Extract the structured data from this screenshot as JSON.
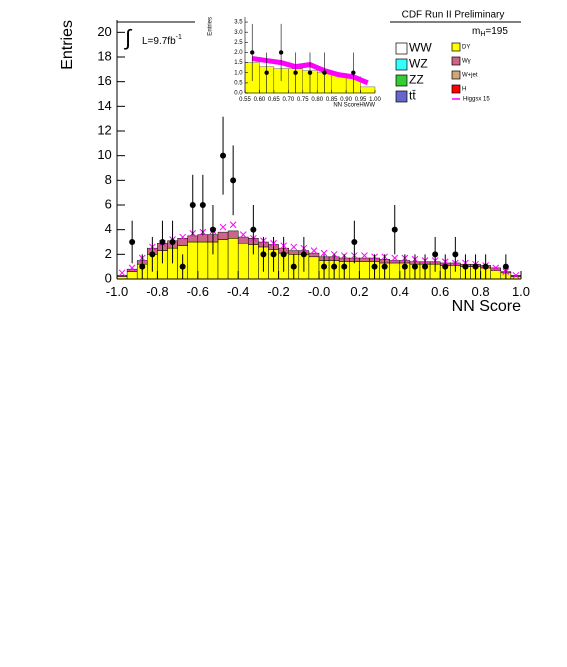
{
  "chart_data": [
    {
      "type": "histogram",
      "title": "CDF Run II Preliminary",
      "mass_label": {
        "prefix": "m",
        "sub": "H",
        "suffix": "=195"
      },
      "lumi_label": {
        "integral": "∫",
        "text": "L=9.7fb",
        "sup": "-1"
      },
      "xlabel": "NN Score",
      "ylabel": "Entries",
      "bins": [
        -1.0,
        -0.95,
        -0.9,
        -0.85,
        -0.8,
        -0.75,
        -0.7,
        -0.65,
        -0.6,
        -0.55,
        -0.5,
        -0.45,
        -0.4,
        -0.35,
        -0.3,
        -0.25,
        -0.2,
        -0.15,
        -0.1,
        -0.05,
        0.0,
        0.05,
        0.1,
        0.15,
        0.2,
        0.25,
        0.3,
        0.35,
        0.4,
        0.45,
        0.5,
        0.55,
        0.6,
        0.65,
        0.7,
        0.75,
        0.8,
        0.85,
        0.9,
        0.95,
        1.0
      ],
      "xlim": [
        -1.0,
        1.0
      ],
      "ylim": [
        0,
        21
      ],
      "xticks": [
        {
          "value": -1.0,
          "label": "-1.0"
        },
        {
          "value": -0.8,
          "label": "-0.8"
        },
        {
          "value": -0.6,
          "label": "-0.6"
        },
        {
          "value": -0.4,
          "label": "-0.4"
        },
        {
          "value": -0.2,
          "label": "-0.2"
        },
        {
          "value": 0,
          "label": "-0.0"
        },
        {
          "value": 0.2,
          "label": "0.2"
        },
        {
          "value": 0.4,
          "label": "0.4"
        },
        {
          "value": 0.6,
          "label": "0.6"
        },
        {
          "value": 0.8,
          "label": "0.8"
        },
        {
          "value": 1.0,
          "label": "1.0"
        }
      ],
      "yticks": [
        0,
        2,
        4,
        6,
        8,
        10,
        12,
        14,
        16,
        18,
        20
      ],
      "backgrounds": [
        {
          "name": "WW",
          "color": "#ffffff"
        },
        {
          "name": "WZ",
          "color": "#33ffff"
        },
        {
          "name": "ZZ",
          "color": "#33cc33"
        },
        {
          "name": "tt̄",
          "color": "#6666cc"
        },
        {
          "name": "DY",
          "color": "#ffff00",
          "values": [
            0.2,
            0.6,
            1.2,
            2.0,
            2.3,
            2.5,
            2.7,
            3.0,
            3.0,
            3.0,
            3.2,
            3.3,
            2.9,
            2.8,
            2.6,
            2.4,
            2.1,
            2.0,
            2.0,
            1.8,
            1.5,
            1.5,
            1.4,
            1.4,
            1.4,
            1.4,
            1.3,
            1.3,
            1.3,
            1.2,
            1.2,
            1.2,
            1.1,
            1.1,
            1.0,
            1.0,
            0.9,
            0.7,
            0.5,
            0.2
          ]
        },
        {
          "name": "Wγ",
          "color": "#cc6688",
          "values": [
            0.1,
            0.2,
            0.3,
            0.5,
            0.6,
            0.6,
            0.6,
            0.5,
            0.6,
            0.6,
            0.6,
            0.6,
            0.5,
            0.5,
            0.4,
            0.4,
            0.4,
            0.3,
            0.3,
            0.3,
            0.3,
            0.3,
            0.3,
            0.3,
            0.3,
            0.3,
            0.3,
            0.2,
            0.2,
            0.2,
            0.2,
            0.2,
            0.2,
            0.2,
            0.2,
            0.2,
            0.2,
            0.2,
            0.1,
            0.1
          ]
        },
        {
          "name": "W+jet",
          "color": "#d2a679"
        },
        {
          "name": "H",
          "color": "#ff0000"
        }
      ],
      "signal": {
        "name": "Higgsx 15",
        "color": "#ff00ff",
        "values": [
          0.5,
          0.9,
          1.7,
          2.6,
          2.9,
          3.2,
          3.4,
          3.7,
          3.8,
          3.9,
          4.2,
          4.4,
          3.6,
          3.3,
          3.1,
          2.9,
          2.7,
          2.6,
          2.5,
          2.3,
          2.1,
          2.0,
          1.9,
          1.9,
          1.9,
          1.8,
          1.8,
          1.7,
          1.7,
          1.6,
          1.5,
          1.5,
          1.4,
          1.3,
          1.3,
          1.2,
          1.1,
          0.9,
          0.6,
          0.3
        ]
      },
      "data": {
        "x": [
          -0.925,
          -0.875,
          -0.825,
          -0.775,
          -0.725,
          -0.675,
          -0.625,
          -0.575,
          -0.525,
          -0.475,
          -0.425,
          -0.325,
          -0.275,
          -0.225,
          -0.175,
          -0.125,
          -0.075,
          0.025,
          0.075,
          0.125,
          0.175,
          0.275,
          0.325,
          0.375,
          0.425,
          0.475,
          0.525,
          0.575,
          0.625,
          0.675,
          0.725,
          0.775,
          0.825,
          0.925
        ],
        "values": [
          3,
          1,
          2,
          3,
          3,
          1,
          6,
          6,
          4,
          10,
          8,
          4,
          2,
          2,
          2,
          1,
          2,
          1,
          1,
          1,
          3,
          1,
          1,
          4,
          1,
          1,
          1,
          2,
          1,
          2,
          1,
          1,
          1,
          1
        ],
        "errors": [
          1.73,
          1,
          1.41,
          1.73,
          1.73,
          1,
          2.45,
          2.45,
          2,
          3.16,
          2.83,
          2,
          1.41,
          1.41,
          1.41,
          1,
          1.41,
          1,
          1,
          1,
          1.73,
          1,
          1,
          2,
          1,
          1,
          1,
          1.41,
          1,
          1.41,
          1,
          1,
          1,
          1
        ]
      }
    },
    {
      "type": "histogram",
      "xlabel": "NN ScoreHWW",
      "ylabel": "Entries",
      "bins": [
        0.55,
        0.6,
        0.65,
        0.7,
        0.75,
        0.8,
        0.85,
        0.9,
        0.95,
        1.0
      ],
      "xlim": [
        0.55,
        1.0
      ],
      "ylim": [
        0,
        3.75
      ],
      "xticks": [
        0.55,
        {
          "value": 0.6,
          "label": "0.60"
        },
        0.65,
        {
          "value": 0.7,
          "label": "0.70"
        },
        0.75,
        {
          "value": 0.8,
          "label": "0.80"
        },
        0.85,
        {
          "value": 0.9,
          "label": "0.90"
        },
        0.95,
        {
          "value": 1.0,
          "label": "1.00"
        }
      ],
      "yticks": [
        {
          "value": 0,
          "label": "0.0"
        },
        0.5,
        {
          "value": 1,
          "label": "1.0"
        },
        1.5,
        {
          "value": 2,
          "label": "2.0"
        },
        2.5,
        {
          "value": 3,
          "label": "3.0"
        },
        3.5
      ],
      "backgrounds": [
        {
          "color": "#ffff00",
          "values": [
            1.5,
            1.3,
            1.2,
            1.2,
            1.1,
            1.0,
            0.9,
            0.8,
            0.3
          ]
        }
      ],
      "signal": {
        "color": "#ff00ff",
        "values": [
          1.7,
          1.6,
          1.5,
          1.3,
          1.4,
          1.1,
          0.9,
          0.8,
          0.5
        ]
      },
      "data": {
        "x": [
          0.575,
          0.625,
          0.675,
          0.725,
          0.775,
          0.825,
          0.925
        ],
        "values": [
          2,
          1,
          2,
          1,
          1,
          1,
          1
        ],
        "errors": [
          1.41,
          1,
          1.41,
          1,
          1,
          1,
          1
        ]
      }
    }
  ]
}
